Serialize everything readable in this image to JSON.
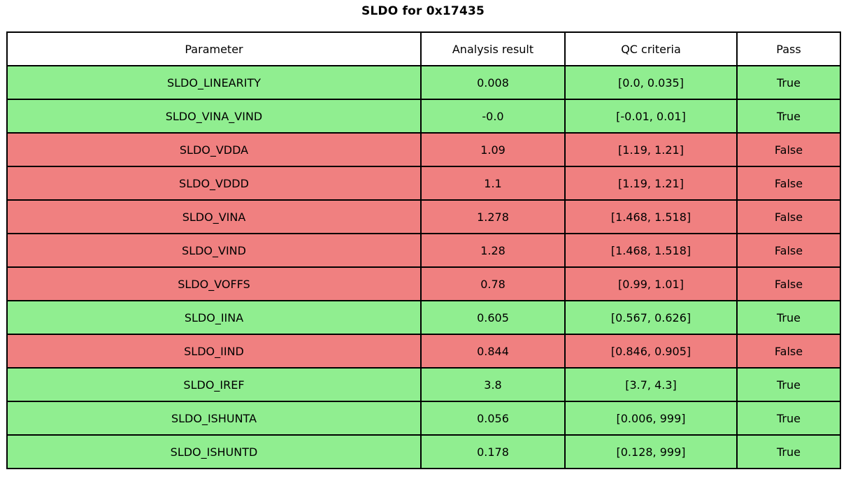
{
  "chart_data": {
    "type": "table",
    "title": "SLDO for 0x17435",
    "columns": [
      "Parameter",
      "Analysis result",
      "QC criteria",
      "Pass"
    ],
    "rows": [
      {
        "parameter": "SLDO_LINEARITY",
        "result": "0.008",
        "criteria": "[0.0, 0.035]",
        "pass": "True"
      },
      {
        "parameter": "SLDO_VINA_VIND",
        "result": "-0.0",
        "criteria": "[-0.01, 0.01]",
        "pass": "True"
      },
      {
        "parameter": "SLDO_VDDA",
        "result": "1.09",
        "criteria": "[1.19, 1.21]",
        "pass": "False"
      },
      {
        "parameter": "SLDO_VDDD",
        "result": "1.1",
        "criteria": "[1.19, 1.21]",
        "pass": "False"
      },
      {
        "parameter": "SLDO_VINA",
        "result": "1.278",
        "criteria": "[1.468, 1.518]",
        "pass": "False"
      },
      {
        "parameter": "SLDO_VIND",
        "result": "1.28",
        "criteria": "[1.468, 1.518]",
        "pass": "False"
      },
      {
        "parameter": "SLDO_VOFFS",
        "result": "0.78",
        "criteria": "[0.99, 1.01]",
        "pass": "False"
      },
      {
        "parameter": "SLDO_IINA",
        "result": "0.605",
        "criteria": "[0.567, 0.626]",
        "pass": "True"
      },
      {
        "parameter": "SLDO_IIND",
        "result": "0.844",
        "criteria": "[0.846, 0.905]",
        "pass": "False"
      },
      {
        "parameter": "SLDO_IREF",
        "result": "3.8",
        "criteria": "[3.7, 4.3]",
        "pass": "True"
      },
      {
        "parameter": "SLDO_ISHUNTA",
        "result": "0.056",
        "criteria": "[0.006, 999]",
        "pass": "True"
      },
      {
        "parameter": "SLDO_ISHUNTD",
        "result": "0.178",
        "criteria": "[0.128, 999]",
        "pass": "True"
      }
    ],
    "layout": {
      "header_background": "#ffffff",
      "border_color": "#000000",
      "legend": "row background encodes pass status"
    }
  },
  "colors": {
    "pass": "#90ee90",
    "fail": "#f08080",
    "border": "#000000",
    "text": "#000000",
    "background": "#ffffff"
  }
}
